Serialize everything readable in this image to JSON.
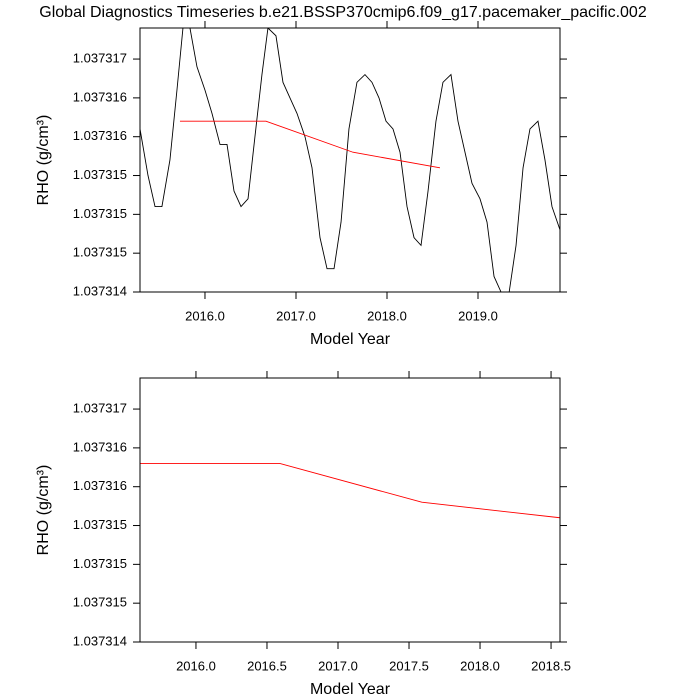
{
  "chart_data": [
    {
      "type": "line",
      "title": "Global Diagnostics Timeseries b.e21.BSSP370cmip6.f09_g17.pacemaker_pacific.002",
      "x_label": "Model Year",
      "y_label": "RHO (g/cm³)",
      "xlim": [
        2015.286,
        2019.901
      ],
      "ylim": [
        1.037314,
        1.0373174
      ],
      "xticks": [
        {
          "value": 2016,
          "label": "2016.0"
        },
        {
          "value": 2017,
          "label": "2017.0"
        },
        {
          "value": 2018,
          "label": "2018.0"
        },
        {
          "value": 2019,
          "label": "2019.0"
        }
      ],
      "yticks": [
        {
          "value": 1.037314,
          "label": "1.037314"
        },
        {
          "value": 1.0373145,
          "label": "1.037315"
        },
        {
          "value": 1.037315,
          "label": "1.037315"
        },
        {
          "value": 1.0373155,
          "label": "1.037315"
        },
        {
          "value": 1.037316,
          "label": "1.037316"
        },
        {
          "value": 1.0373165,
          "label": "1.037316"
        },
        {
          "value": 1.037317,
          "label": "1.037317"
        }
      ],
      "series": [
        {
          "color": "#000000",
          "x": [
            2015.286,
            2015.374,
            2015.451,
            2015.527,
            2015.615,
            2015.692,
            2015.758,
            2015.835,
            2015.912,
            2016.0,
            2016.077,
            2016.165,
            2016.242,
            2016.319,
            2016.396,
            2016.473,
            2016.549,
            2016.626,
            2016.692,
            2016.78,
            2016.857,
            2016.934,
            2017.011,
            2017.099,
            2017.176,
            2017.264,
            2017.341,
            2017.418,
            2017.495,
            2017.582,
            2017.67,
            2017.758,
            2017.835,
            2017.912,
            2017.989,
            2018.066,
            2018.143,
            2018.22,
            2018.297,
            2018.374,
            2018.451,
            2018.538,
            2018.615,
            2018.703,
            2018.78,
            2018.857,
            2018.934,
            2019.022,
            2019.099,
            2019.176,
            2019.253,
            2019.33,
            2019.418,
            2019.495,
            2019.571,
            2019.659,
            2019.736,
            2019.813,
            2019.901
          ],
          "values": [
            1.0373161,
            1.0373155,
            1.0373151,
            1.0373151,
            1.0373157,
            1.0373166,
            1.0373174,
            1.0373174,
            1.0373169,
            1.0373166,
            1.0373163,
            1.0373159,
            1.0373159,
            1.0373153,
            1.0373151,
            1.0373152,
            1.037316,
            1.0373168,
            1.0373174,
            1.0373173,
            1.0373167,
            1.0373165,
            1.0373163,
            1.037316,
            1.0373156,
            1.0373147,
            1.0373143,
            1.0373143,
            1.0373149,
            1.0373161,
            1.0373167,
            1.0373168,
            1.0373167,
            1.0373165,
            1.0373162,
            1.0373161,
            1.0373158,
            1.0373151,
            1.0373147,
            1.0373146,
            1.0373153,
            1.0373162,
            1.0373167,
            1.0373168,
            1.0373162,
            1.0373158,
            1.0373154,
            1.0373152,
            1.0373149,
            1.0373142,
            1.037314,
            1.0373139,
            1.0373146,
            1.0373156,
            1.0373161,
            1.0373162,
            1.0373157,
            1.0373151,
            1.0373148
          ]
        },
        {
          "color": "#ff0000",
          "x": [
            2015.725,
            2016.67,
            2017.626,
            2018.582
          ],
          "values": [
            1.0373162,
            1.0373162,
            1.0373158,
            1.0373156
          ]
        }
      ]
    },
    {
      "type": "line",
      "x_label": "Model Year",
      "y_label": "RHO (g/cm³)",
      "xlim": [
        2015.606,
        2018.563
      ],
      "ylim": [
        1.037314,
        1.0373174
      ],
      "xticks": [
        {
          "value": 2016,
          "label": "2016.0"
        },
        {
          "value": 2016.5,
          "label": "2016.5"
        },
        {
          "value": 2017,
          "label": "2017.0"
        },
        {
          "value": 2017.5,
          "label": "2017.5"
        },
        {
          "value": 2018,
          "label": "2018.0"
        },
        {
          "value": 2018.5,
          "label": "2018.5"
        }
      ],
      "yticks": [
        {
          "value": 1.037314,
          "label": "1.037314"
        },
        {
          "value": 1.0373145,
          "label": "1.037315"
        },
        {
          "value": 1.037315,
          "label": "1.037315"
        },
        {
          "value": 1.0373155,
          "label": "1.037315"
        },
        {
          "value": 1.037316,
          "label": "1.037316"
        },
        {
          "value": 1.0373165,
          "label": "1.037316"
        },
        {
          "value": 1.037317,
          "label": "1.037317"
        }
      ],
      "series": [
        {
          "color": "#ff0000",
          "x": [
            2015.606,
            2016.59,
            2017.59,
            2018.563
          ],
          "values": [
            1.0373163,
            1.0373163,
            1.0373158,
            1.0373156
          ]
        }
      ]
    }
  ]
}
